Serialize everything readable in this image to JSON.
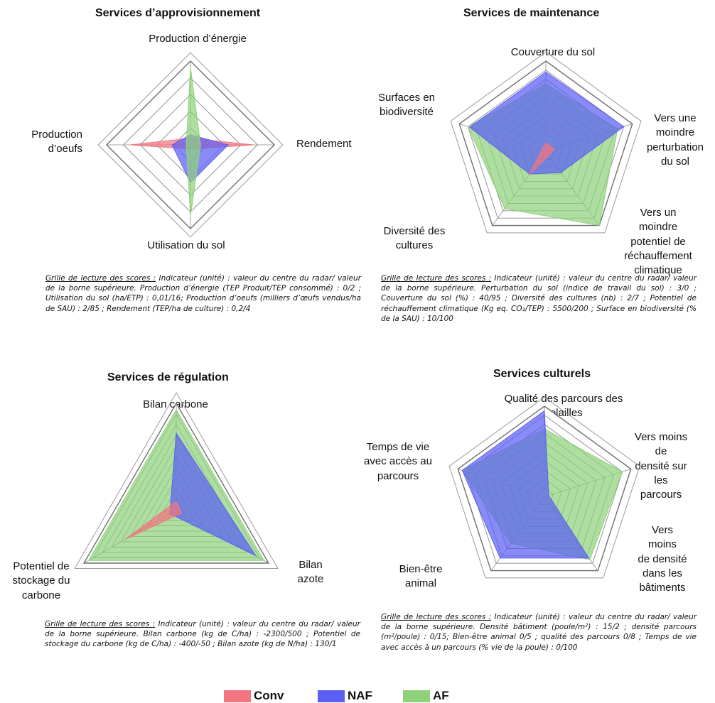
{
  "legend": [
    {
      "label": "Conv",
      "color": "#f2757f"
    },
    {
      "label": "NAF",
      "color": "#5b5ff5"
    },
    {
      "label": "AF",
      "color": "#8fd17b"
    }
  ],
  "panels": {
    "approvisionnement": {
      "title": "Services d’approvisionnement",
      "axes": [
        "Production d’énergie",
        "Rendement",
        "Utilisation du sol",
        "Production\nd’oeufs"
      ],
      "note_key": "Grille de lecture des scores :",
      "note_text": " Indicateur (unité) : valeur du centre du radar/ valeur de la borne supérieure. Production d’énergie (TEP Produit/TEP consommé) : 0/2 ; Utilisation du sol (ha/ETP) : 0,01/16; Production d’oeufs (milliers d’œufs vendus/ha de SAU) : 2/85 ; Rendement (TEP/ha de culture) : 0,2/4"
    },
    "maintenance": {
      "title": "Services de maintenance",
      "axes": [
        "Couverture du sol",
        "Vers une\nmoindre\nperturbation\ndu sol",
        "Vers un moindre\npotentiel de\nréchauffement\nclimatique",
        "Diversité des\ncultures",
        "Surfaces en\nbiodiversité"
      ],
      "note_key": "Grille de lecture des scores :",
      "note_text": " Indicateur (unité) : valeur du centre du radar/ valeur de la borne supérieure. Perturbation du sol (indice de travail du sol) : 3/0 ; Couverture du sol (%) : 40/95 ; Diversité des cultures (nb) : 2/7 ; Potentiel de réchauffement climatique (Kg eq. CO₂/TEP) : 5500/200 ; Surface en biodiversité (% de la SAU) : 10/100"
    },
    "regulation": {
      "title": "Services de régulation",
      "axes": [
        "Bilan carbone",
        "Bilan\nazote",
        "Potentiel de\nstockage du\ncarbone"
      ],
      "note_key": "Grille de lecture des scores :",
      "note_text": " Indicateur (unité) : valeur du centre du radar/ valeur de la borne supérieure. Bilan carbone (kg de C/ha) : -2300/500 ; Potentiel de stockage du carbone (kg de C/ha) : -400/-50 ; Bilan azote (kg de N/ha) : 130/1"
    },
    "culturels": {
      "title": "Services culturels",
      "axes": [
        "Qualité des parcours des volailles",
        "Vers moins de\ndensité sur les\nparcours",
        "Vers moins\nde densité\ndans les\nbâtiments",
        "Bien-être\nanimal",
        "Temps de vie\navec accès au\nparcours"
      ],
      "note_key": "Grille de lecture des scores :",
      "note_text": " Indicateur (unité) : valeur du centre du radar/ valeur de la borne supérieure. Densité bâtiment (poule/m²) : 15/2 ; densité parcours (m²/poule) : 0/15; Bien-être animal 0/5 ; qualité des parcours 0/8 ; Temps de vie avec accès à un parcours (% vie de la poule) : 0/100"
    }
  },
  "chart_data": [
    {
      "type": "radar",
      "title": "Services d’approvisionnement",
      "axes": [
        "Production d’énergie",
        "Rendement",
        "Utilisation du sol",
        "Production d’oeufs"
      ],
      "rings": 5,
      "range": [
        0,
        1
      ],
      "series": [
        {
          "name": "Conv",
          "color": "#f2757f",
          "values": [
            0.08,
            0.75,
            0.05,
            0.72
          ]
        },
        {
          "name": "NAF",
          "color": "#5b5ff5",
          "values": [
            0.12,
            0.45,
            0.45,
            0.22
          ]
        },
        {
          "name": "AF",
          "color": "#8fd17b",
          "values": [
            0.92,
            0.12,
            0.85,
            0.05
          ]
        }
      ]
    },
    {
      "type": "radar",
      "title": "Services de maintenance",
      "axes": [
        "Couverture du sol",
        "Vers une moindre perturbation du sol",
        "Vers un moindre potentiel de réchauffement climatique",
        "Diversité des cultures",
        "Surfaces en biodiversité"
      ],
      "rings": 10,
      "range": [
        0,
        1
      ],
      "series": [
        {
          "name": "AF",
          "color": "#8fd17b",
          "values": [
            0.75,
            0.83,
            1.0,
            0.77,
            0.9
          ]
        },
        {
          "name": "NAF",
          "color": "#5b5ff5",
          "values": [
            0.88,
            0.9,
            0.28,
            0.3,
            0.88
          ]
        },
        {
          "name": "Conv",
          "color": "#f2757f",
          "values": [
            0.1,
            0.1,
            0.05,
            0.3,
            0.05
          ]
        }
      ]
    },
    {
      "type": "radar",
      "title": "Services de régulation",
      "axes": [
        "Bilan carbone",
        "Bilan azote",
        "Potentiel de stockage du carbone"
      ],
      "rings": 10,
      "range": [
        0,
        1
      ],
      "series": [
        {
          "name": "AF",
          "color": "#8fd17b",
          "values": [
            0.94,
            0.95,
            0.95
          ]
        },
        {
          "name": "NAF",
          "color": "#5b5ff5",
          "values": [
            0.72,
            0.86,
            0.07
          ]
        },
        {
          "name": "Conv",
          "color": "#f2757f",
          "values": [
            0.08,
            0.06,
            0.55
          ]
        }
      ]
    },
    {
      "type": "radar",
      "title": "Services culturels",
      "axes": [
        "Qualité des parcours des volailles",
        "Vers moins de densité sur les parcours",
        "Vers moins de densité dans les bâtiments",
        "Bien-être animal",
        "Temps de vie avec accès au parcours"
      ],
      "rings": 10,
      "range": [
        0,
        1
      ],
      "series": [
        {
          "name": "AF",
          "color": "#8fd17b",
          "values": [
            0.75,
            0.9,
            0.85,
            0.63,
            0.95
          ]
        },
        {
          "name": "NAF",
          "color": "#5b5ff5",
          "values": [
            0.95,
            0.05,
            0.83,
            0.83,
            0.95
          ]
        }
      ]
    }
  ]
}
